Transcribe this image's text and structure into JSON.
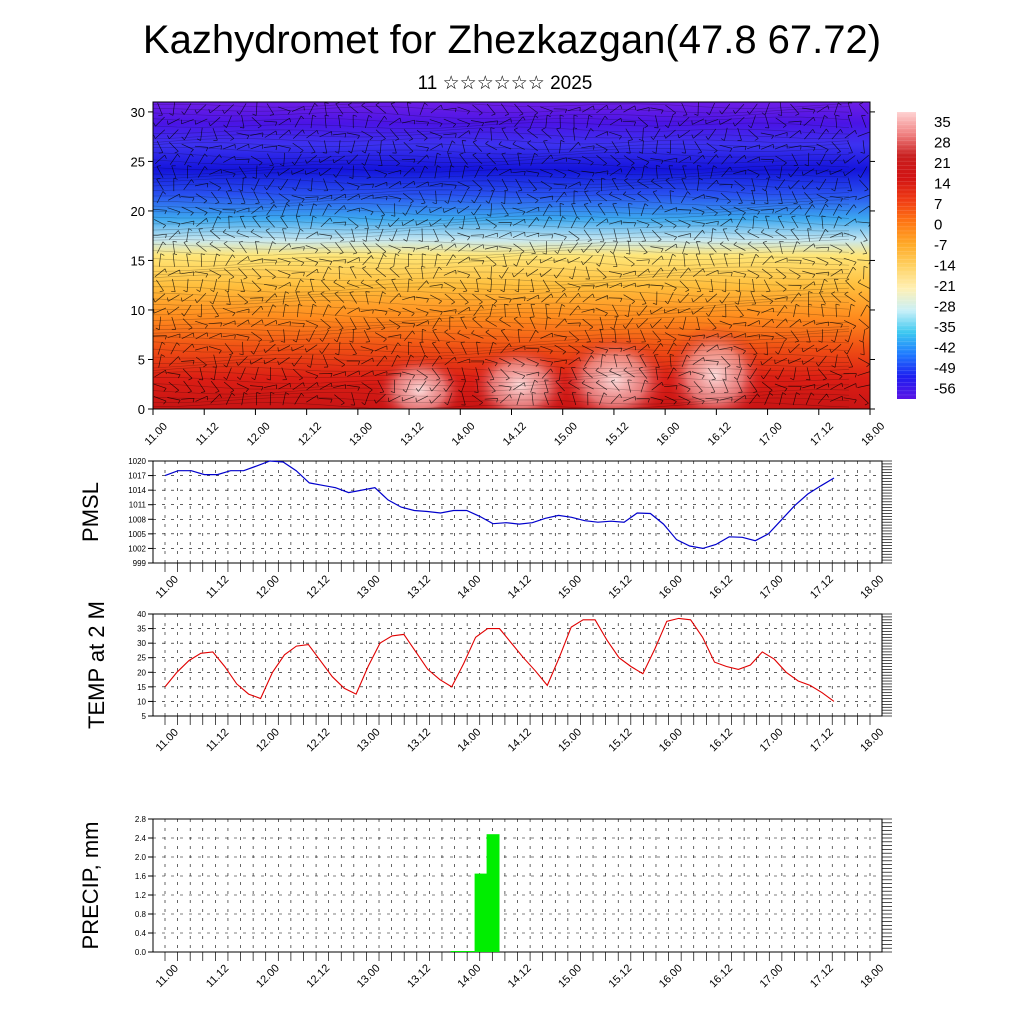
{
  "header": {
    "title": "Kazhydromet for Zhezkazgan(47.8 67.72)",
    "subtitle": "11 ☆☆☆☆☆☆ 2025"
  },
  "chart_data": [
    {
      "type": "heatmap",
      "title": "",
      "x_ticks": [
        "11.00",
        "11.12",
        "12.00",
        "12.12",
        "13.00",
        "13.12",
        "14.00",
        "14.12",
        "15.00",
        "15.12",
        "16.00",
        "16.12",
        "17.00",
        "17.12",
        "18.00"
      ],
      "y_ticks": [
        "0",
        "5",
        "10",
        "15",
        "20",
        "25",
        "30"
      ],
      "ylim": [
        0,
        31
      ],
      "overlay": "wind barbs",
      "colorbar": {
        "labels": [
          "35",
          "28",
          "21",
          "14",
          "7",
          "0",
          "-7",
          "-14",
          "-21",
          "-28",
          "-35",
          "-42",
          "-49",
          "-56"
        ],
        "range": [
          -60,
          38
        ],
        "colors": [
          "#5a14e6",
          "#1e1ef0",
          "#1e78ff",
          "#3cc8f0",
          "#c8f0f8",
          "#fff0b4",
          "#ffd264",
          "#ffaa28",
          "#ff7814",
          "#f03c14",
          "#d21414",
          "#c81e1e",
          "#f08282",
          "#ffd2d2"
        ]
      }
    },
    {
      "type": "line",
      "ylabel": "PMSL",
      "y_ticks": [
        "1020",
        "1017",
        "1014",
        "1011",
        "1008",
        "1005",
        "1002",
        "999"
      ],
      "ylim": [
        999,
        1020
      ],
      "x_ticks": [
        "11.00",
        "11.12",
        "12.00",
        "12.12",
        "13.00",
        "13.12",
        "14.00",
        "14.12",
        "15.00",
        "15.12",
        "16.00",
        "16.12",
        "17.00",
        "17.12",
        "18.00"
      ],
      "color": "#0000cc",
      "values": [
        1017.0,
        1018.0,
        1018.0,
        1017.2,
        1017.2,
        1018.0,
        1018.0,
        1019.0,
        1020.0,
        1019.8,
        1018.0,
        1015.5,
        1015.0,
        1014.5,
        1013.5,
        1014.0,
        1014.5,
        1012.0,
        1010.5,
        1009.8,
        1009.6,
        1009.3,
        1009.8,
        1009.8,
        1008.6,
        1007.1,
        1007.3,
        1007.0,
        1007.3,
        1008.2,
        1008.8,
        1008.4,
        1007.7,
        1007.4,
        1007.6,
        1007.4,
        1009.3,
        1009.2,
        1007.0,
        1003.8,
        1002.5,
        1002.0,
        1002.8,
        1004.4,
        1004.3,
        1003.6,
        1005.0,
        1007.9,
        1010.8,
        1013.2,
        1014.9,
        1016.5
      ]
    },
    {
      "type": "line",
      "ylabel": "TEMP at 2 M",
      "y_ticks": [
        "40",
        "35",
        "30",
        "25",
        "20",
        "15",
        "10",
        "5"
      ],
      "ylim": [
        5,
        40
      ],
      "x_ticks": [
        "11.00",
        "11.12",
        "12.00",
        "12.12",
        "13.00",
        "13.12",
        "14.00",
        "14.12",
        "15.00",
        "15.12",
        "16.00",
        "16.12",
        "17.00",
        "17.12",
        "18.00"
      ],
      "color": "#e00000",
      "values": [
        15,
        20,
        24,
        26.5,
        27,
        22,
        16,
        12.5,
        11,
        20,
        26,
        29,
        29.5,
        24,
        18.5,
        14.5,
        12.5,
        22,
        30,
        32.5,
        33,
        27,
        21,
        17.5,
        15,
        23,
        32,
        35,
        35,
        30,
        25,
        20.5,
        15.5,
        25,
        35.5,
        38,
        38,
        31,
        25,
        22,
        19.5,
        28,
        37.5,
        38.5,
        38,
        32,
        23.5,
        22,
        21,
        22.5,
        27,
        24.5,
        20,
        17,
        15.5,
        13,
        10
      ]
    },
    {
      "type": "bar",
      "ylabel": "PRECIP, mm",
      "y_ticks": [
        "2.8",
        "2.4",
        "2.0",
        "1.6",
        "1.2",
        "0.8",
        "0.4",
        "0.0"
      ],
      "ylim": [
        0,
        2.8
      ],
      "x_ticks": [
        "11.00",
        "11.12",
        "12.00",
        "12.12",
        "13.00",
        "13.12",
        "14.00",
        "14.12",
        "15.00",
        "15.12",
        "16.00",
        "16.12",
        "17.00",
        "17.12",
        "18.00"
      ],
      "color": "#00ee00",
      "bars": [
        {
          "t": 72.0,
          "value": 0.02
        },
        {
          "t": 75.0,
          "value": 0.02
        },
        {
          "t": 78.0,
          "value": 1.65
        },
        {
          "t": 81.0,
          "value": 2.48
        }
      ]
    }
  ]
}
